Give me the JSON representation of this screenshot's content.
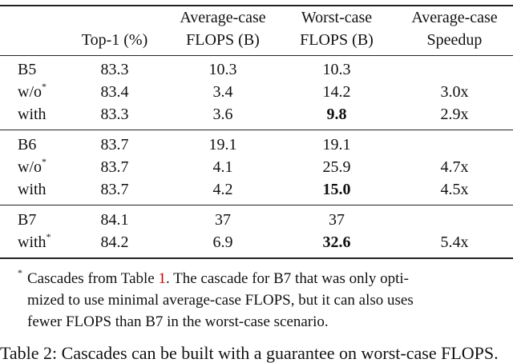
{
  "table": {
    "header": [
      [
        "Top-1 (%)"
      ],
      [
        "Average-case",
        "FLOPS (B)"
      ],
      [
        "Worst-case",
        "FLOPS (B)"
      ],
      [
        "Average-case",
        "Speedup"
      ]
    ],
    "groups": [
      [
        {
          "label": "B5",
          "cells": [
            "83.3",
            "10.3",
            "10.3"
          ]
        },
        {
          "label": "w/o",
          "sup": "*",
          "cells": [
            "83.4",
            "3.4",
            "14.2",
            "3.0x"
          ]
        },
        {
          "label": "with",
          "cells": [
            "83.3",
            "3.6",
            "9.8",
            "2.9x"
          ],
          "bold": [
            2
          ]
        }
      ],
      [
        {
          "label": "B6",
          "cells": [
            "83.7",
            "19.1",
            "19.1"
          ]
        },
        {
          "label": "w/o",
          "sup": "*",
          "cells": [
            "83.7",
            "4.1",
            "25.9",
            "4.7x"
          ]
        },
        {
          "label": "with",
          "cells": [
            "83.7",
            "4.2",
            "15.0",
            "4.5x"
          ],
          "bold": [
            2
          ]
        }
      ],
      [
        {
          "label": "B7",
          "cells": [
            "84.1",
            "37",
            "37"
          ]
        },
        {
          "label": "with",
          "sup": "*",
          "cells": [
            "84.2",
            "6.9",
            "32.6",
            "5.4x"
          ],
          "bold": [
            2
          ]
        }
      ]
    ]
  },
  "footnote": {
    "mark": "*",
    "before": "Cascades from Table ",
    "ref": "1",
    "after": ". The cascade for B7 that was only opti-",
    "lines": [
      "mized to use minimal average-case FLOPS, but it can also uses",
      "fewer FLOPS than B7 in the worst-case scenario."
    ]
  },
  "caption": "Table 2: Cascades can be built with a guarantee on worst-case FLOPS."
}
